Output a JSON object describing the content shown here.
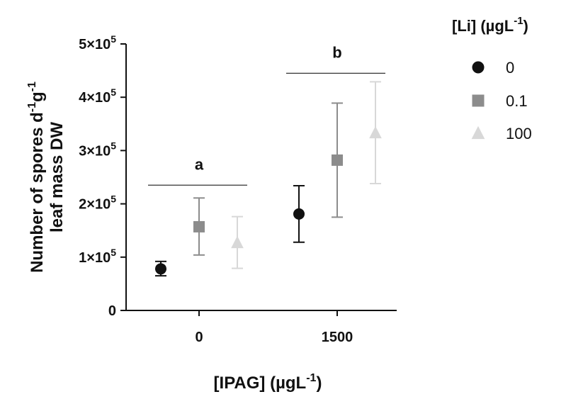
{
  "chart_data": {
    "type": "scatter",
    "ylabel_line1": "Number of spores d",
    "ylabel_line1_sup1": "-1",
    "ylabel_line1_mid": "g",
    "ylabel_line1_sup2": "-1",
    "ylabel_line2": "leaf mass DW",
    "xlabel_main": "[IPAG] (µgL",
    "xlabel_sup": "-1",
    "xlabel_end": ")",
    "categories": [
      "0",
      "1500"
    ],
    "ylim": [
      0,
      500000
    ],
    "yticks": [
      {
        "value": 0,
        "label": "0",
        "sup": ""
      },
      {
        "value": 100000,
        "label": "1×10",
        "sup": "5"
      },
      {
        "value": 200000,
        "label": "2×10",
        "sup": "5"
      },
      {
        "value": 300000,
        "label": "3×10",
        "sup": "5"
      },
      {
        "value": 400000,
        "label": "4×10",
        "sup": "5"
      },
      {
        "value": 500000,
        "label": "5×10",
        "sup": "5"
      }
    ],
    "legend": {
      "title_main": "[Li] (µgL",
      "title_sup": "-1",
      "title_end": ")",
      "placement": "right"
    },
    "series": [
      {
        "name": "0",
        "marker": "circle",
        "color": "#111111",
        "points": [
          {
            "category": "0",
            "mean": 78000,
            "low": 65000,
            "high": 92000
          },
          {
            "category": "1500",
            "mean": 181000,
            "low": 128000,
            "high": 234000
          }
        ]
      },
      {
        "name": "0.1",
        "marker": "square",
        "color": "#8c8c8c",
        "points": [
          {
            "category": "0",
            "mean": 157000,
            "low": 104000,
            "high": 211000
          },
          {
            "category": "1500",
            "mean": 282000,
            "low": 175000,
            "high": 389000
          }
        ]
      },
      {
        "name": "100",
        "marker": "triangle",
        "color": "#d8d8d8",
        "points": [
          {
            "category": "0",
            "mean": 127000,
            "low": 79000,
            "high": 176000
          },
          {
            "category": "1500",
            "mean": 333000,
            "low": 238000,
            "high": 429000
          }
        ]
      }
    ],
    "annotations": [
      {
        "text": "a",
        "category": "0",
        "y": 235000
      },
      {
        "text": "b",
        "category": "1500",
        "y": 445000
      }
    ]
  }
}
